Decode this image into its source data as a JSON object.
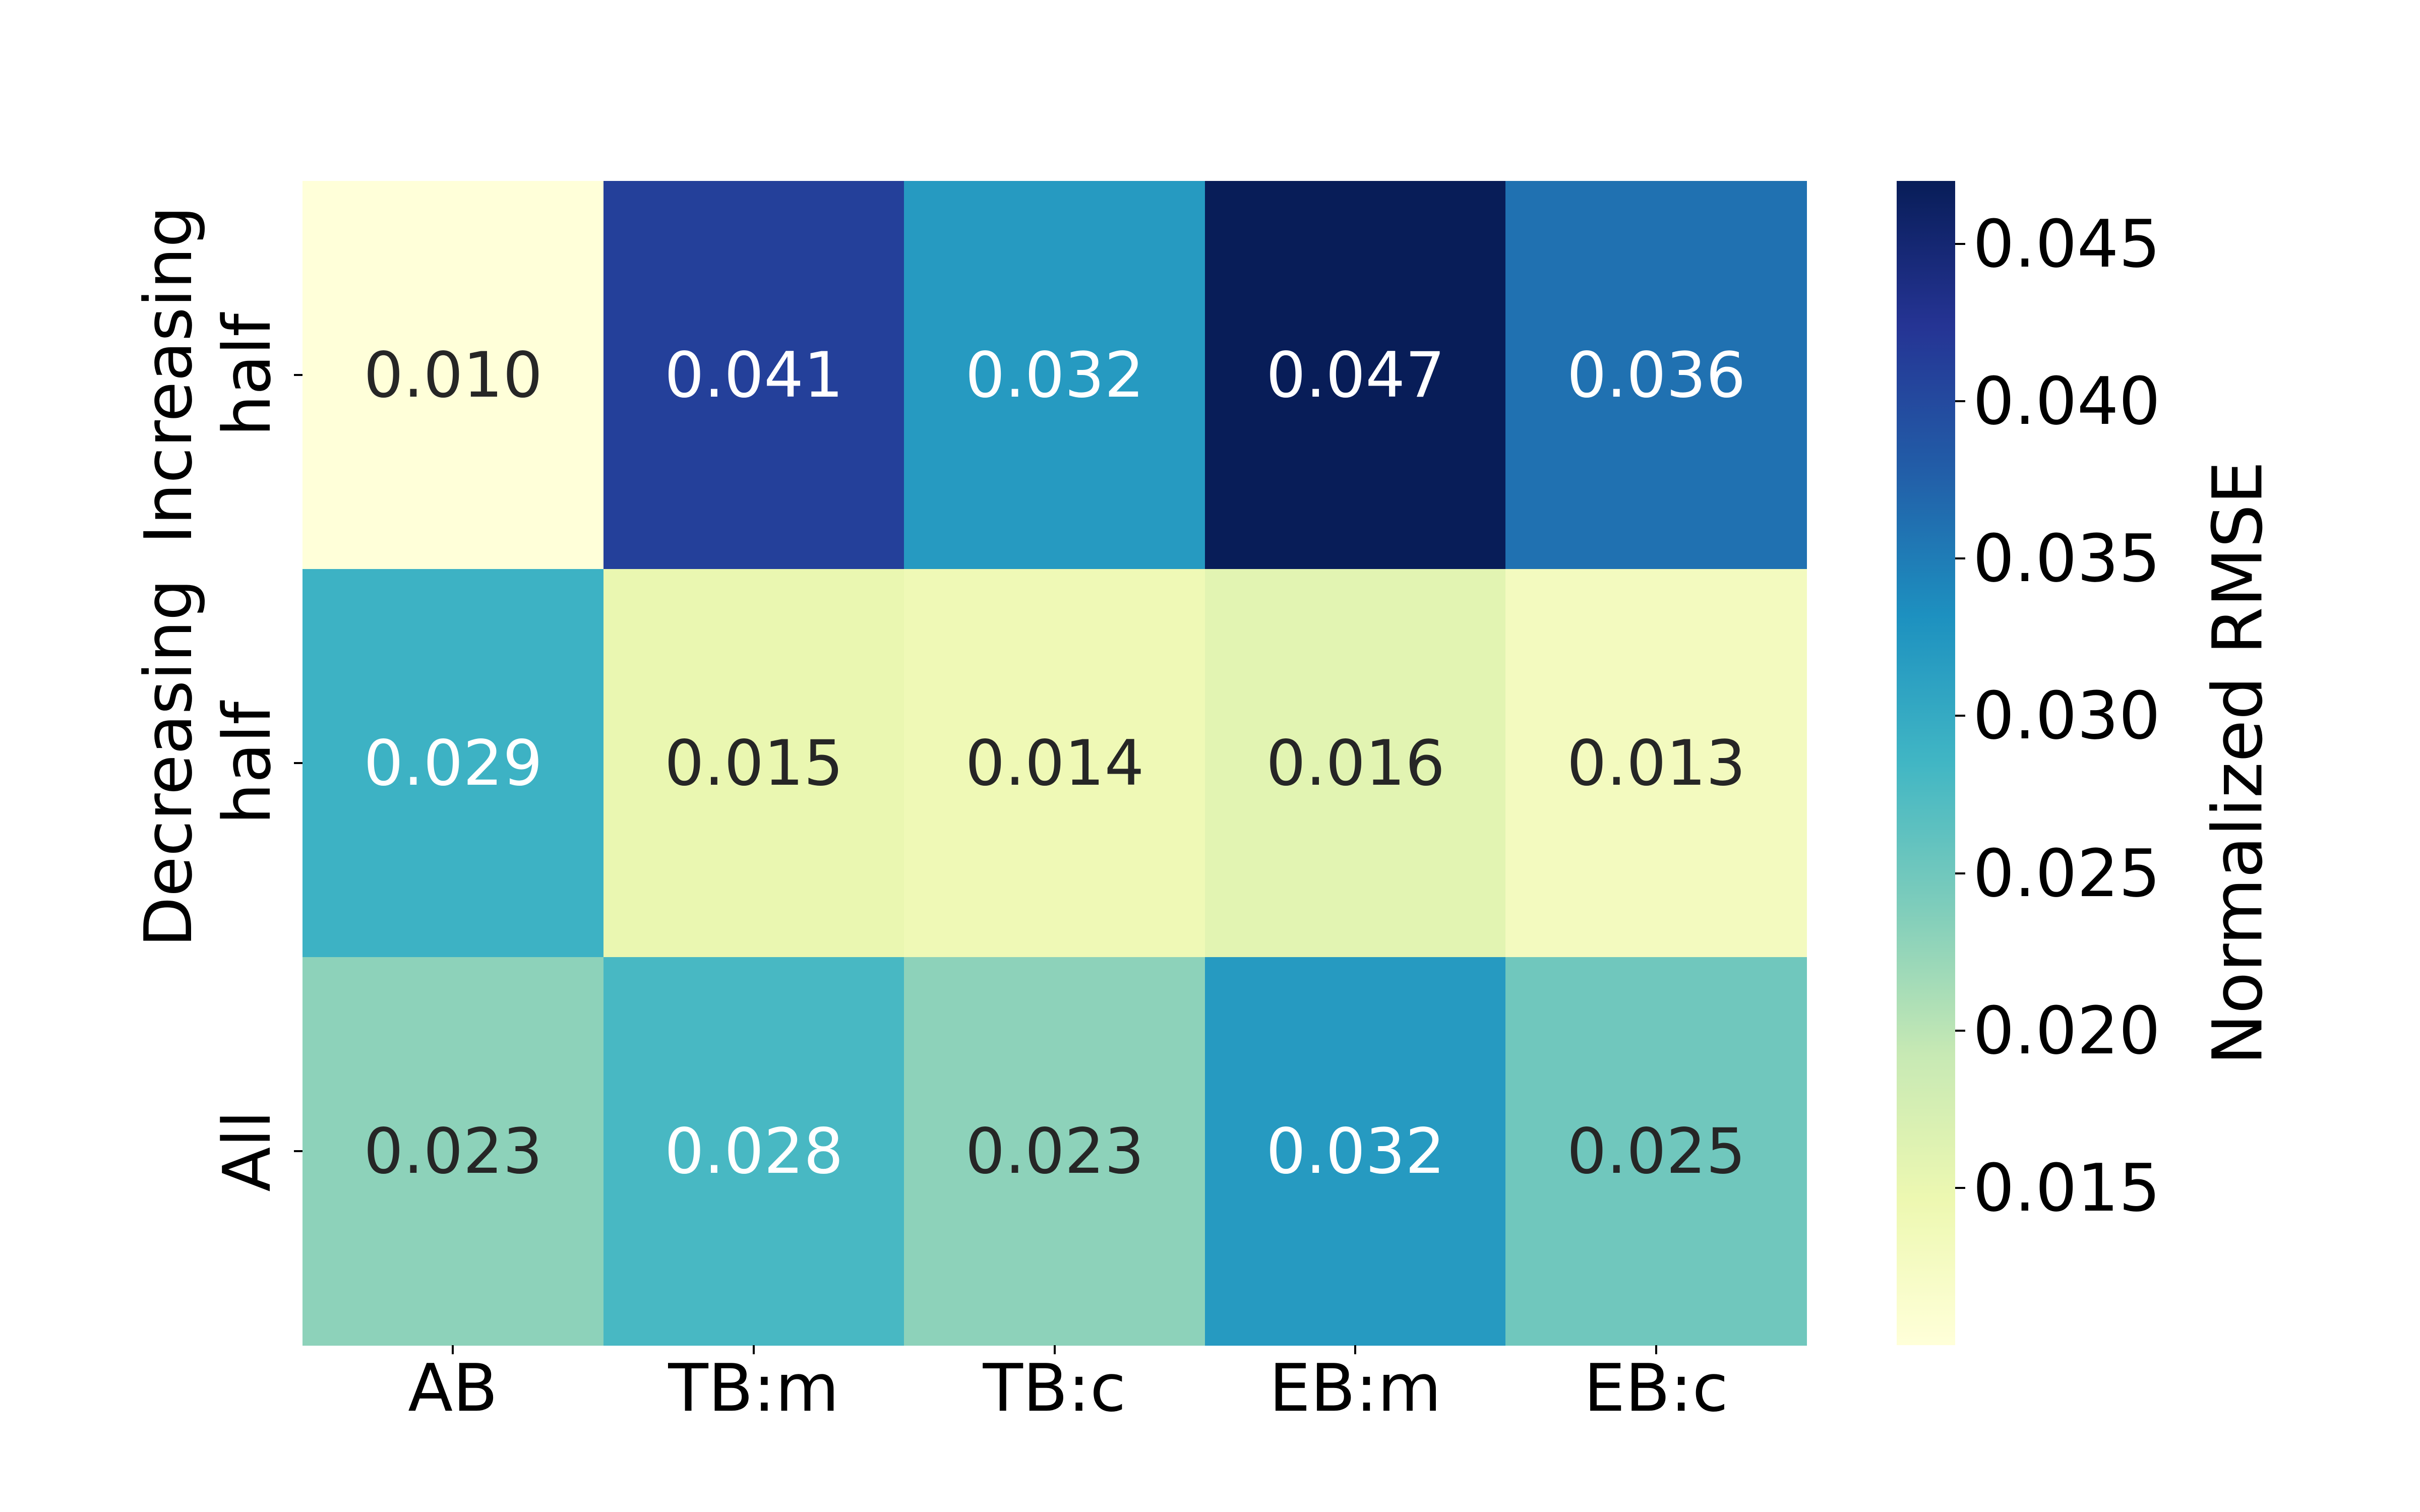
{
  "chart_data": {
    "type": "heatmap",
    "title": "",
    "x_categories": [
      "AB",
      "TB:m",
      "TB:c",
      "EB:m",
      "EB:c"
    ],
    "y_categories": [
      [
        "Increasing",
        "half"
      ],
      [
        "Decreasing",
        "half"
      ],
      [
        "All"
      ]
    ],
    "values": [
      [
        0.01,
        0.041,
        0.032,
        0.047,
        0.036
      ],
      [
        0.029,
        0.015,
        0.014,
        0.016,
        0.013
      ],
      [
        0.023,
        0.028,
        0.023,
        0.032,
        0.025
      ]
    ],
    "cell_labels": [
      [
        "0.010",
        "0.041",
        "0.032",
        "0.047",
        "0.036"
      ],
      [
        "0.029",
        "0.015",
        "0.014",
        "0.016",
        "0.013"
      ],
      [
        "0.023",
        "0.028",
        "0.023",
        "0.032",
        "0.025"
      ]
    ],
    "colorbar": {
      "label": "Normalized RMSE",
      "tick_labels": [
        "0.015",
        "0.020",
        "0.025",
        "0.030",
        "0.035",
        "0.040",
        "0.045"
      ],
      "tick_values": [
        0.015,
        0.02,
        0.025,
        0.03,
        0.035,
        0.04,
        0.045
      ],
      "vmin": 0.01,
      "vmax": 0.047,
      "position": "right"
    },
    "colormap": {
      "name": "YlGnBu",
      "stops": [
        "#ffffd9",
        "#edf8b1",
        "#c7e9b4",
        "#7fcdbb",
        "#41b6c4",
        "#1d91c0",
        "#225ea8",
        "#253494",
        "#081d58"
      ]
    },
    "colors": {
      "annotation_dark": "#262626",
      "annotation_light": "#ffffff",
      "tick": "#000000",
      "background": "#ffffff"
    },
    "axes": {
      "grid": false,
      "xlabel": "",
      "ylabel": ""
    }
  }
}
